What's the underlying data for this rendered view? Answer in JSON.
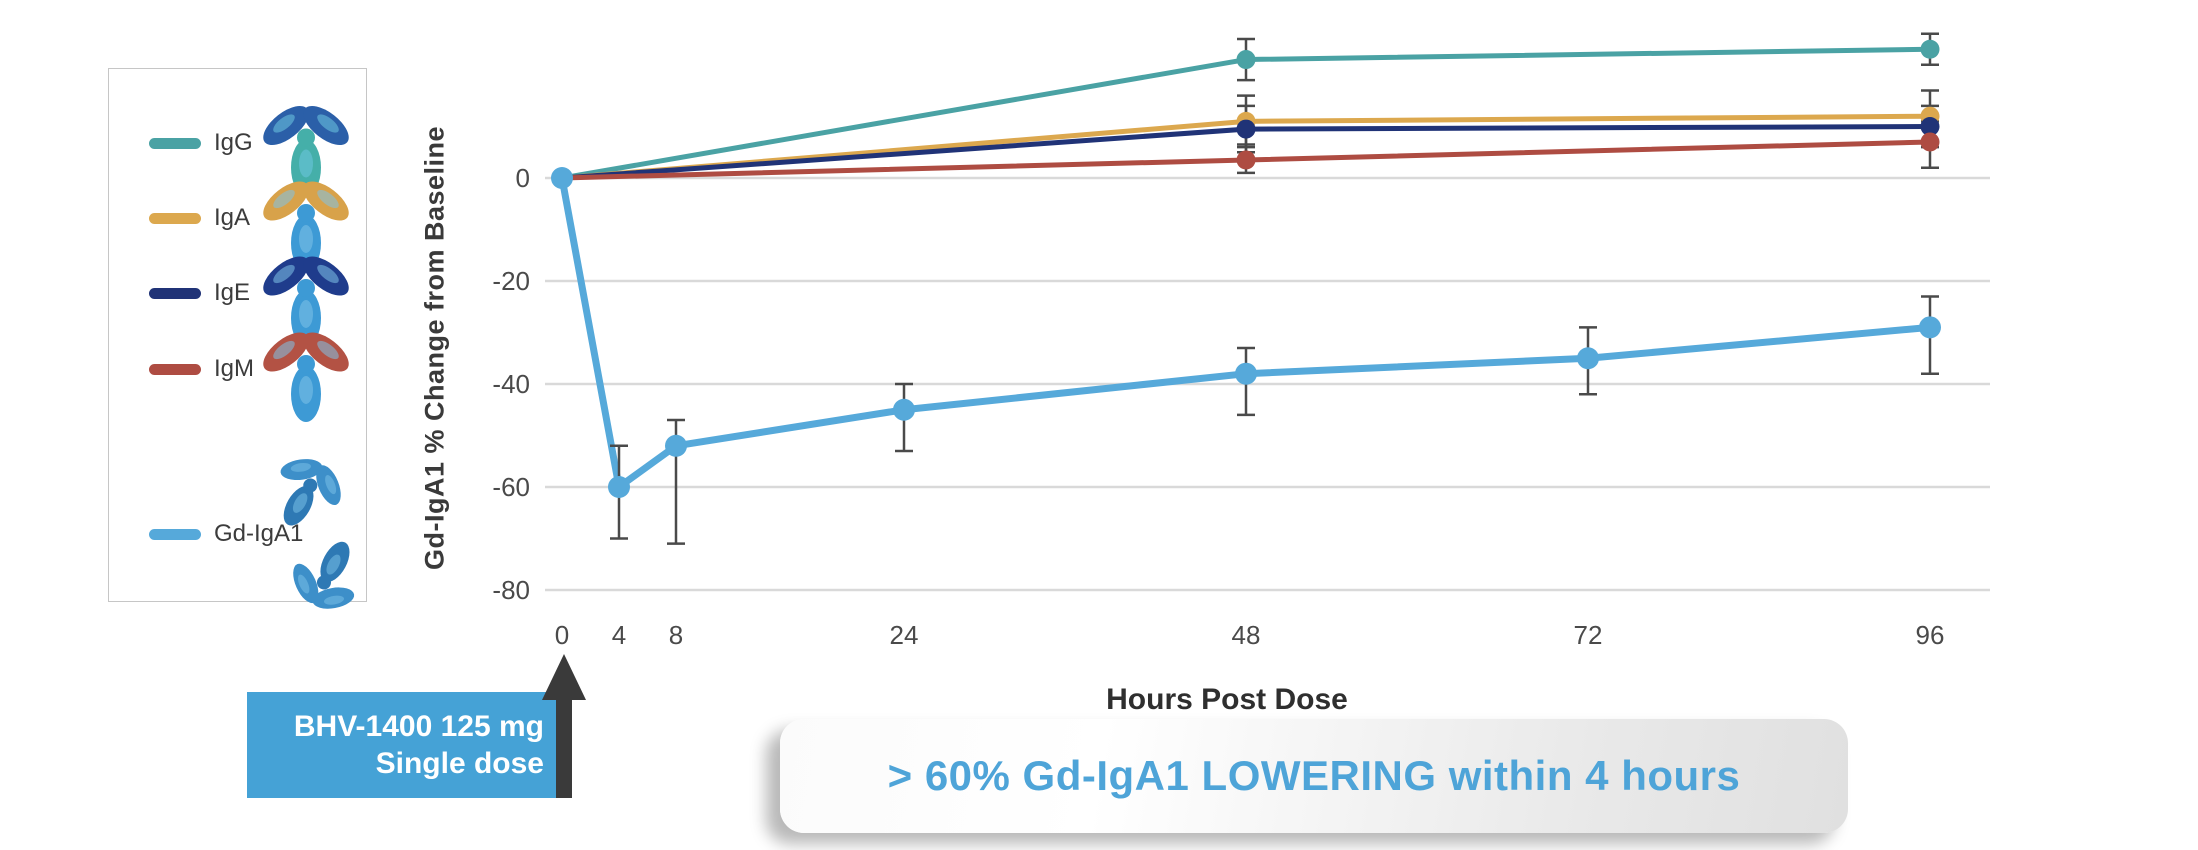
{
  "legend": {
    "items": [
      {
        "label": "IgG",
        "color": "#4AA2A4",
        "icon": "igg-antibody-icon"
      },
      {
        "label": "IgA",
        "color": "#DCA84E",
        "icon": "iga-antibody-icon"
      },
      {
        "label": "IgE",
        "color": "#203377",
        "icon": "ige-antibody-icon"
      },
      {
        "label": "IgM",
        "color": "#AE4C42",
        "icon": "igm-antibody-icon"
      },
      {
        "label": "Gd-IgA1",
        "color": "#56A9DA",
        "icon": "gd-iga1-antibody-icon"
      }
    ]
  },
  "chart_data": {
    "type": "line",
    "title": "",
    "xlabel": "Hours Post Dose",
    "ylabel": "Gd-IgA1 % Change from Baseline",
    "x_ticks": [
      0,
      4,
      8,
      24,
      48,
      72,
      96
    ],
    "y_ticks": [
      0,
      -20,
      -40,
      -60,
      -80
    ],
    "ylim": [
      -80,
      28
    ],
    "grid": "horizontal",
    "legend_position": "left-panel",
    "series": [
      {
        "name": "IgG",
        "color": "#4AA2A4",
        "x": [
          0,
          48,
          96
        ],
        "y": [
          0,
          23,
          25
        ],
        "error_bars": [
          {
            "x": 48,
            "low": 19,
            "high": 27
          },
          {
            "x": 96,
            "low": 22,
            "high": 28
          }
        ]
      },
      {
        "name": "IgA",
        "color": "#DCA84E",
        "x": [
          0,
          48,
          96
        ],
        "y": [
          0,
          11,
          12
        ],
        "error_bars": [
          {
            "x": 48,
            "low": 6,
            "high": 16
          },
          {
            "x": 96,
            "low": 7,
            "high": 17
          }
        ]
      },
      {
        "name": "IgE",
        "color": "#203377",
        "x": [
          0,
          48,
          96
        ],
        "y": [
          0,
          9.5,
          10
        ],
        "error_bars": [
          {
            "x": 48,
            "low": 5,
            "high": 14
          },
          {
            "x": 96,
            "low": 6,
            "high": 14
          }
        ]
      },
      {
        "name": "IgM",
        "color": "#AE4C42",
        "x": [
          0,
          48,
          96
        ],
        "y": [
          0,
          3.5,
          7
        ],
        "error_bars": [
          {
            "x": 48,
            "low": 1,
            "high": 6.5
          },
          {
            "x": 96,
            "low": 2,
            "high": 11
          }
        ]
      },
      {
        "name": "Gd-IgA1",
        "color": "#56A9DA",
        "x": [
          0,
          4,
          8,
          24,
          48,
          72,
          96
        ],
        "y": [
          0,
          -60,
          -52,
          -45,
          -38,
          -35,
          -29
        ],
        "error_bars": [
          {
            "x": 4,
            "low": -70,
            "high": -52
          },
          {
            "x": 8,
            "low": -71,
            "high": -47
          },
          {
            "x": 24,
            "low": -53,
            "high": -40
          },
          {
            "x": 48,
            "low": -46,
            "high": -33
          },
          {
            "x": 72,
            "low": -42,
            "high": -29
          },
          {
            "x": 96,
            "low": -38,
            "high": -23
          }
        ]
      }
    ]
  },
  "dose_callout": {
    "line1": "BHV-1400 125 mg",
    "line2": "Single dose",
    "background": "#45A2D6",
    "arrow_icon": "up-arrow-icon"
  },
  "banner": {
    "text": "> 60% Gd-IgA1 LOWERING within 4 hours",
    "text_color": "#4EA4D8"
  }
}
